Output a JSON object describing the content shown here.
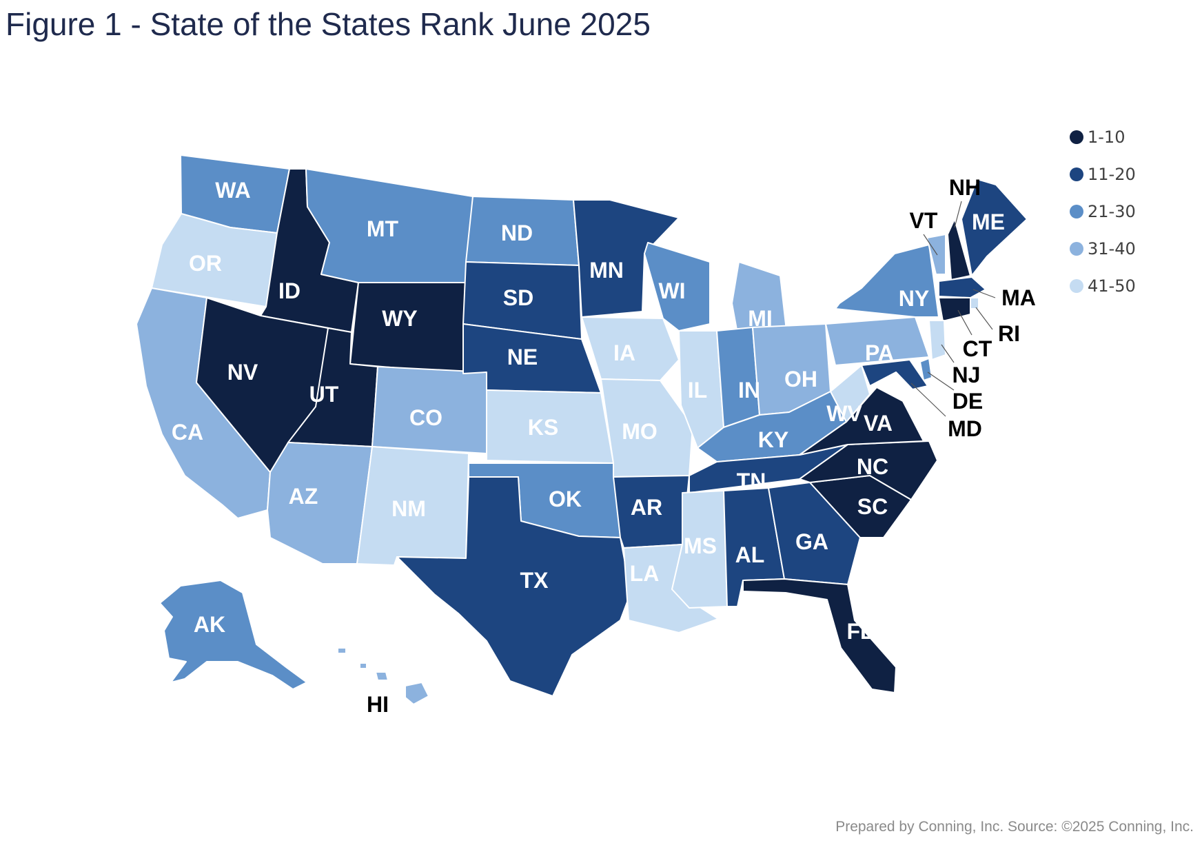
{
  "title": "Figure 1 - State of the States Rank June 2025",
  "credit": "Prepared by Conning, Inc. Source: ©2025 Conning, Inc.",
  "legend": [
    {
      "label": "1-10",
      "color": "#0f2143"
    },
    {
      "label": "11-20",
      "color": "#1d4580"
    },
    {
      "label": "21-30",
      "color": "#5b8ec7"
    },
    {
      "label": "31-40",
      "color": "#8cb2de"
    },
    {
      "label": "41-50",
      "color": "#c5dcf2"
    }
  ],
  "states": [
    {
      "abbr": "WA",
      "tier": 2
    },
    {
      "abbr": "OR",
      "tier": 4
    },
    {
      "abbr": "CA",
      "tier": 3
    },
    {
      "abbr": "ID",
      "tier": 0
    },
    {
      "abbr": "NV",
      "tier": 0
    },
    {
      "abbr": "MT",
      "tier": 2
    },
    {
      "abbr": "WY",
      "tier": 0
    },
    {
      "abbr": "UT",
      "tier": 0
    },
    {
      "abbr": "AZ",
      "tier": 3
    },
    {
      "abbr": "CO",
      "tier": 3
    },
    {
      "abbr": "NM",
      "tier": 4
    },
    {
      "abbr": "ND",
      "tier": 2
    },
    {
      "abbr": "SD",
      "tier": 1
    },
    {
      "abbr": "NE",
      "tier": 1
    },
    {
      "abbr": "KS",
      "tier": 4
    },
    {
      "abbr": "OK",
      "tier": 2
    },
    {
      "abbr": "TX",
      "tier": 1
    },
    {
      "abbr": "MN",
      "tier": 1
    },
    {
      "abbr": "IA",
      "tier": 4
    },
    {
      "abbr": "MO",
      "tier": 4
    },
    {
      "abbr": "AR",
      "tier": 1
    },
    {
      "abbr": "LA",
      "tier": 4
    },
    {
      "abbr": "WI",
      "tier": 2
    },
    {
      "abbr": "MI",
      "tier": 3
    },
    {
      "abbr": "IL",
      "tier": 4
    },
    {
      "abbr": "IN",
      "tier": 2
    },
    {
      "abbr": "OH",
      "tier": 3
    },
    {
      "abbr": "KY",
      "tier": 2
    },
    {
      "abbr": "TN",
      "tier": 1
    },
    {
      "abbr": "MS",
      "tier": 4
    },
    {
      "abbr": "AL",
      "tier": 1
    },
    {
      "abbr": "GA",
      "tier": 1
    },
    {
      "abbr": "FL",
      "tier": 0
    },
    {
      "abbr": "SC",
      "tier": 0
    },
    {
      "abbr": "NC",
      "tier": 0
    },
    {
      "abbr": "VA",
      "tier": 0
    },
    {
      "abbr": "WV",
      "tier": 4
    },
    {
      "abbr": "PA",
      "tier": 3
    },
    {
      "abbr": "NY",
      "tier": 2
    },
    {
      "abbr": "VT",
      "tier": 3
    },
    {
      "abbr": "NH",
      "tier": 0
    },
    {
      "abbr": "ME",
      "tier": 1
    },
    {
      "abbr": "MA",
      "tier": 1
    },
    {
      "abbr": "RI",
      "tier": 4
    },
    {
      "abbr": "CT",
      "tier": 0
    },
    {
      "abbr": "NJ",
      "tier": 4
    },
    {
      "abbr": "DE",
      "tier": 2
    },
    {
      "abbr": "MD",
      "tier": 1
    },
    {
      "abbr": "AK",
      "tier": 2
    },
    {
      "abbr": "HI",
      "tier": 3
    }
  ]
}
